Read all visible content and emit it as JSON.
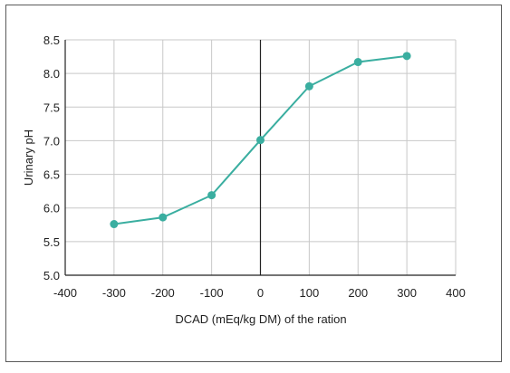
{
  "chart_data": {
    "type": "line",
    "title": "",
    "xlabel": "DCAD (mEq/kg DM) of the ration",
    "ylabel": "Urinary pH",
    "xlim": [
      -400,
      400
    ],
    "ylim": [
      5.0,
      8.5
    ],
    "xticks": [
      -400,
      -300,
      -200,
      -100,
      0,
      100,
      200,
      300,
      400
    ],
    "yticks": [
      5.0,
      5.5,
      6.0,
      6.5,
      7.0,
      7.5,
      8.0,
      8.5
    ],
    "grid": true,
    "legend": "none",
    "series": [
      {
        "color": "#3aaea0",
        "x": [
          -300,
          -200,
          -100,
          0,
          100,
          200,
          300
        ],
        "y": [
          5.76,
          5.86,
          6.19,
          7.01,
          7.81,
          8.17,
          8.26
        ]
      }
    ]
  }
}
